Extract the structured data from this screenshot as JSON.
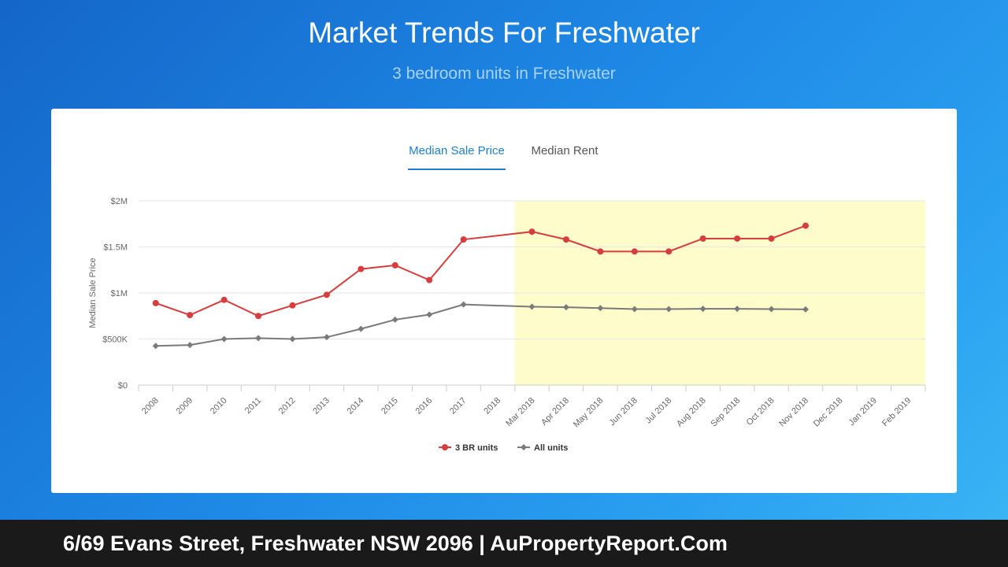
{
  "header": {
    "title": "Market Trends For Freshwater",
    "subtitle": "3 bedroom units in Freshwater"
  },
  "tabs": [
    {
      "label": "Median Sale Price",
      "active": true
    },
    {
      "label": "Median Rent",
      "active": false
    }
  ],
  "chart_data": {
    "type": "line",
    "ylabel": "Median Sale Price",
    "ylim": [
      0,
      2000000
    ],
    "yticks": [
      0,
      500000,
      1000000,
      1500000,
      2000000
    ],
    "ytick_labels": [
      "$0",
      "$500K",
      "$1M",
      "$1.5M",
      "$2M"
    ],
    "categories": [
      "2008",
      "2009",
      "2010",
      "2011",
      "2012",
      "2013",
      "2014",
      "2015",
      "2016",
      "2017",
      "2018",
      "Mar 2018",
      "Apr 2018",
      "May 2018",
      "Jun 2018",
      "Jul 2018",
      "Aug 2018",
      "Sep 2018",
      "Oct 2018",
      "Nov 2018",
      "Dec 2018",
      "Jan 2019",
      "Feb 2019"
    ],
    "highlight_range": [
      "Mar 2018",
      "Feb 2019"
    ],
    "highlight_color": "#fffccc",
    "legend_position": "bottom",
    "series": [
      {
        "name": "3 BR units",
        "color": "#d63e3e",
        "marker": "circle",
        "values": [
          890000,
          760000,
          925000,
          750000,
          865000,
          980000,
          1260000,
          1300000,
          1140000,
          1580000,
          null,
          1665000,
          1580000,
          1450000,
          1450000,
          1450000,
          1590000,
          1590000,
          1590000,
          1730000,
          null,
          null,
          null
        ]
      },
      {
        "name": "All units",
        "color": "#7a7a7a",
        "marker": "diamond",
        "values": [
          425000,
          435000,
          500000,
          510000,
          500000,
          520000,
          610000,
          710000,
          765000,
          875000,
          null,
          850000,
          845000,
          835000,
          825000,
          825000,
          828000,
          828000,
          825000,
          822000,
          null,
          null,
          null
        ]
      }
    ]
  },
  "footer": {
    "text": "6/69 Evans Street, Freshwater NSW 2096 | AuPropertyReport.Com"
  }
}
